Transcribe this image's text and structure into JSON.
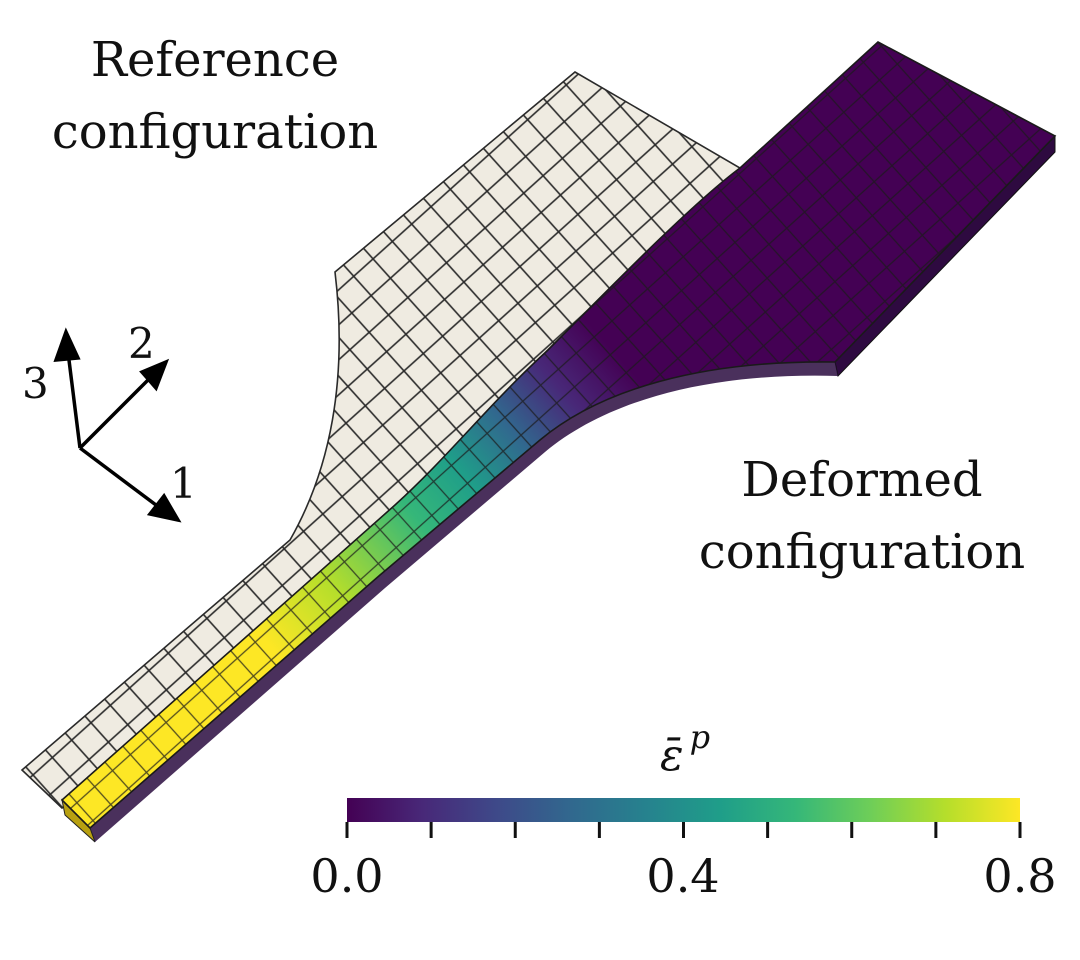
{
  "labels": {
    "reference": [
      "Reference",
      "configuration"
    ],
    "deformed": [
      "Deformed",
      "configuration"
    ]
  },
  "axes": {
    "x1": "1",
    "x2": "2",
    "x3": "3"
  },
  "colorbar": {
    "symbol": "ε̄",
    "superscript": "p",
    "colormap": "viridis",
    "min": 0.0,
    "max": 0.8,
    "tick_labels": [
      "0.0",
      "0.4",
      "0.8"
    ],
    "colors": [
      "#440154",
      "#482878",
      "#3e4989",
      "#31688e",
      "#26828e",
      "#1f9e89",
      "#35b779",
      "#6ece58",
      "#b5de2b",
      "#fde725"
    ]
  },
  "colors": {
    "reference_mesh": "#efebe1",
    "mesh_lines": "#2a2a2a"
  }
}
